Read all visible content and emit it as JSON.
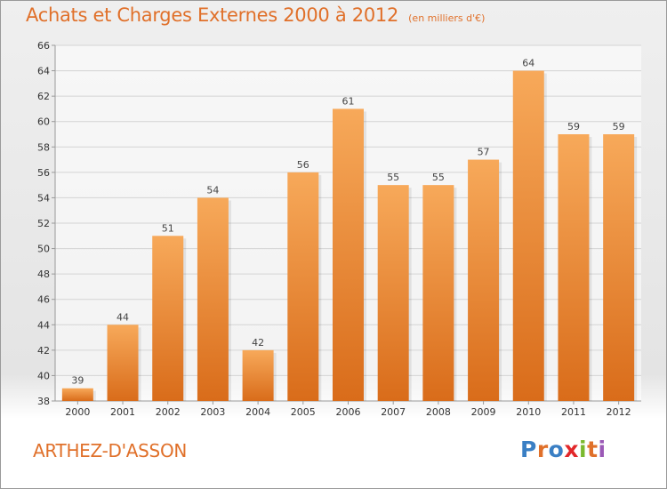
{
  "header": {
    "title": "Achats et Charges Externes 2000 à 2012",
    "subtitle": "(en milliers d'€)"
  },
  "footer": {
    "commune": "ARTHEZ-D'ASSON",
    "logo_text": "Proxiti",
    "logo_colors": [
      "#3a7fc4",
      "#e0702a",
      "#3a7fc4",
      "#e2272a",
      "#7ab92e",
      "#e0702a",
      "#9b59b6"
    ]
  },
  "colors": {
    "bar_light": "#f7a95a",
    "bar_dark": "#d96c1a",
    "accent": "#e0702a"
  },
  "chart_data": {
    "type": "bar",
    "title": "Achats et Charges Externes 2000 à 2012",
    "subtitle": "(en milliers d'€)",
    "categories": [
      "2000",
      "2001",
      "2002",
      "2003",
      "2004",
      "2005",
      "2006",
      "2007",
      "2008",
      "2009",
      "2010",
      "2011",
      "2012"
    ],
    "values": [
      39,
      44,
      51,
      54,
      42,
      56,
      61,
      55,
      55,
      57,
      64,
      59,
      59
    ],
    "ylim": [
      38,
      66
    ],
    "yticks": [
      38,
      40,
      42,
      44,
      46,
      48,
      50,
      52,
      54,
      56,
      58,
      60,
      62,
      64,
      66
    ],
    "grid": true,
    "xlabel": "",
    "ylabel": ""
  }
}
